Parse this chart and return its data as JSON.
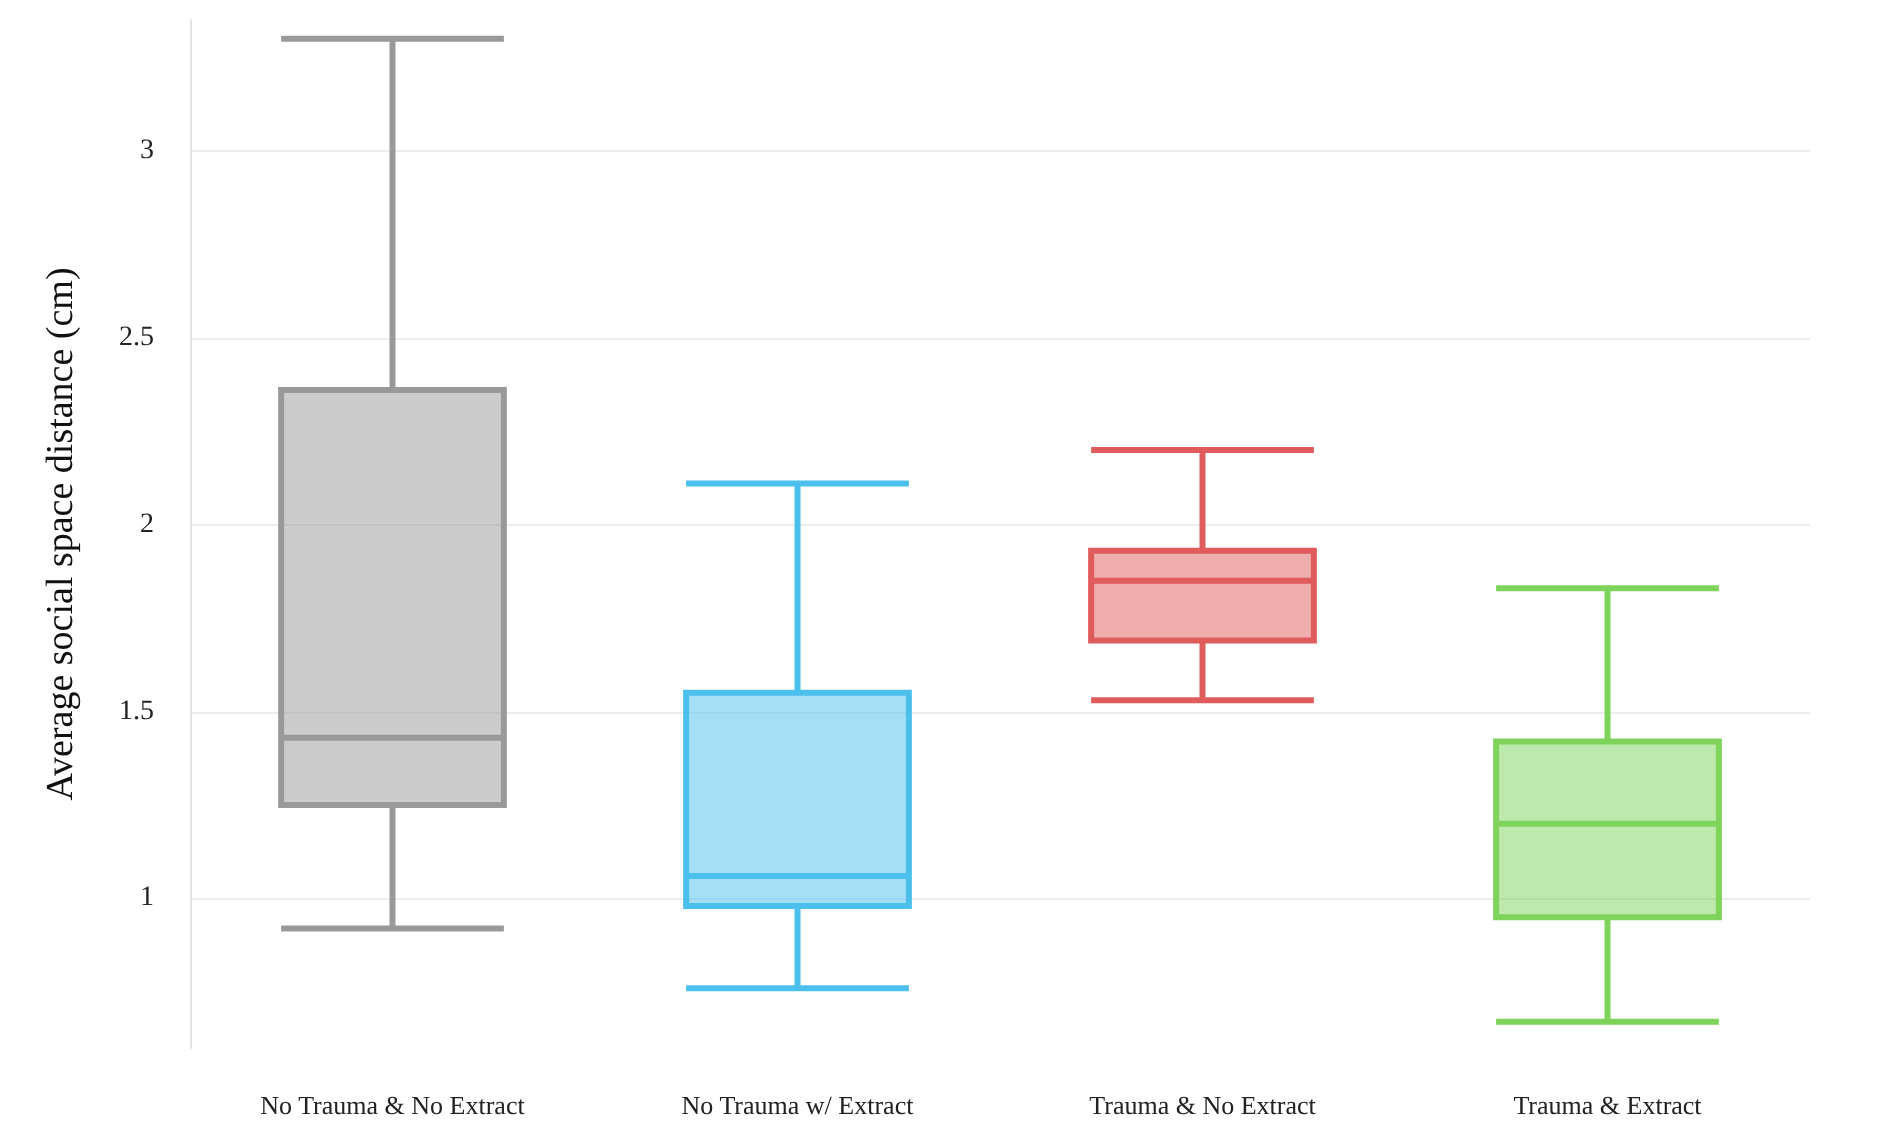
{
  "chart_data": {
    "type": "box",
    "ylabel": "Average social space distance (cm)",
    "categories": [
      "No Trauma & No Extract",
      "No Trauma w/ Extract",
      "Trauma & No Extract",
      "Trauma & Extract"
    ],
    "boxes": [
      {
        "low": 0.92,
        "q1": 1.25,
        "median": 1.43,
        "q3": 2.36,
        "high": 3.3
      },
      {
        "low": 0.76,
        "q1": 0.98,
        "median": 1.06,
        "q3": 1.55,
        "high": 2.11
      },
      {
        "low": 1.53,
        "q1": 1.69,
        "median": 1.85,
        "q3": 1.93,
        "high": 2.2
      },
      {
        "low": 0.67,
        "q1": 0.95,
        "median": 1.2,
        "q3": 1.42,
        "high": 1.83
      }
    ],
    "colors": [
      "#999999",
      "#4cc0ec",
      "#e05c5c",
      "#7ed35a"
    ],
    "ylim": [
      0.6,
      3.35
    ],
    "yticks": [
      1,
      1.5,
      2,
      2.5,
      3
    ],
    "grid": "y"
  }
}
